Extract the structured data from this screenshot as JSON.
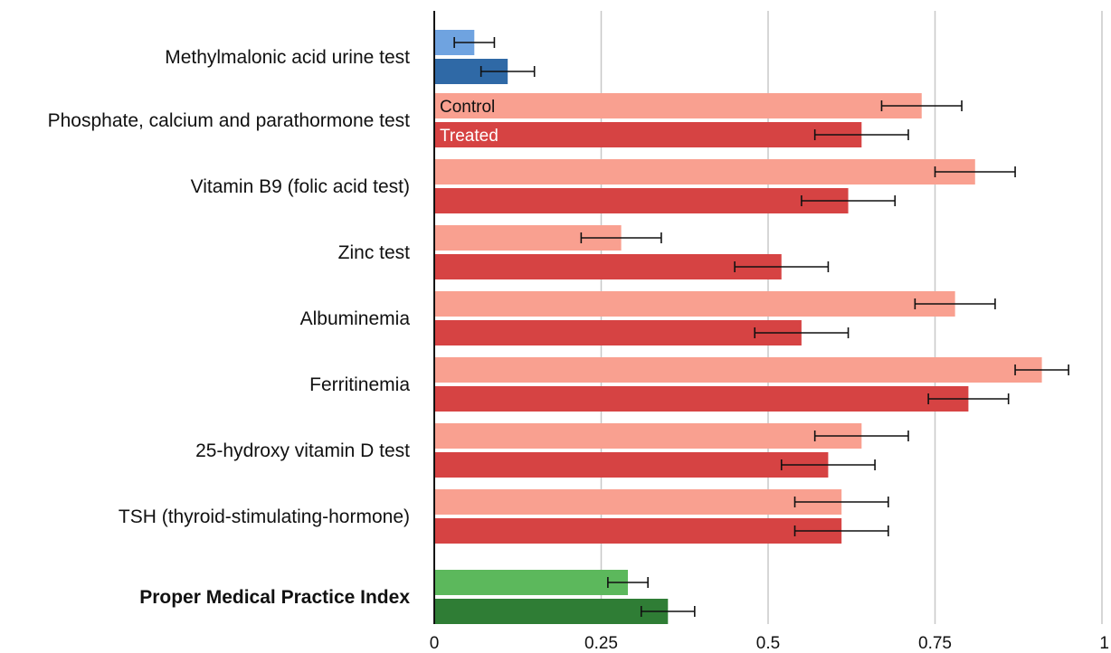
{
  "chart_data": {
    "type": "bar",
    "orientation": "horizontal",
    "title": "",
    "xlabel": "",
    "ylabel": "",
    "xlim": [
      0,
      1
    ],
    "x_ticks": [
      "0",
      "0.25",
      "0.5",
      "0.75",
      "1"
    ],
    "grid": true,
    "categories": [
      "Methylmalonic acid urine test",
      "Phosphate, calcium and parathormone test",
      "Vitamin B9 (folic acid test)",
      "Zinc test",
      "Albuminemia",
      "Ferritinemia",
      "25-hydroxy vitamin D test",
      "TSH (thyroid-stimulating-hormone)",
      "Proper Medical Practice Index"
    ],
    "bold_categories": [
      "Proper Medical Practice Index"
    ],
    "series": [
      {
        "name": "Control",
        "values": [
          0.06,
          0.73,
          0.81,
          0.28,
          0.78,
          0.91,
          0.64,
          0.61,
          0.29
        ],
        "error": [
          0.03,
          0.06,
          0.06,
          0.06,
          0.06,
          0.04,
          0.07,
          0.07,
          0.03
        ]
      },
      {
        "name": "Treated",
        "values": [
          0.11,
          0.64,
          0.62,
          0.52,
          0.55,
          0.8,
          0.59,
          0.61,
          0.35
        ],
        "error": [
          0.04,
          0.07,
          0.07,
          0.07,
          0.07,
          0.06,
          0.07,
          0.07,
          0.04
        ]
      }
    ],
    "colors": {
      "control_by_category": [
        "#6fa3e0",
        "#f9a090",
        "#f9a090",
        "#f9a090",
        "#f9a090",
        "#f9a090",
        "#f9a090",
        "#f9a090",
        "#5cb85c"
      ],
      "treated_by_category": [
        "#2f69a6",
        "#d64343",
        "#d64343",
        "#d64343",
        "#d64343",
        "#d64343",
        "#d64343",
        "#d64343",
        "#2f7d35"
      ],
      "control_label": "#111111",
      "treated_label": "#ffffff"
    },
    "series_label_category": "Phosphate, calcium and parathormone test"
  }
}
